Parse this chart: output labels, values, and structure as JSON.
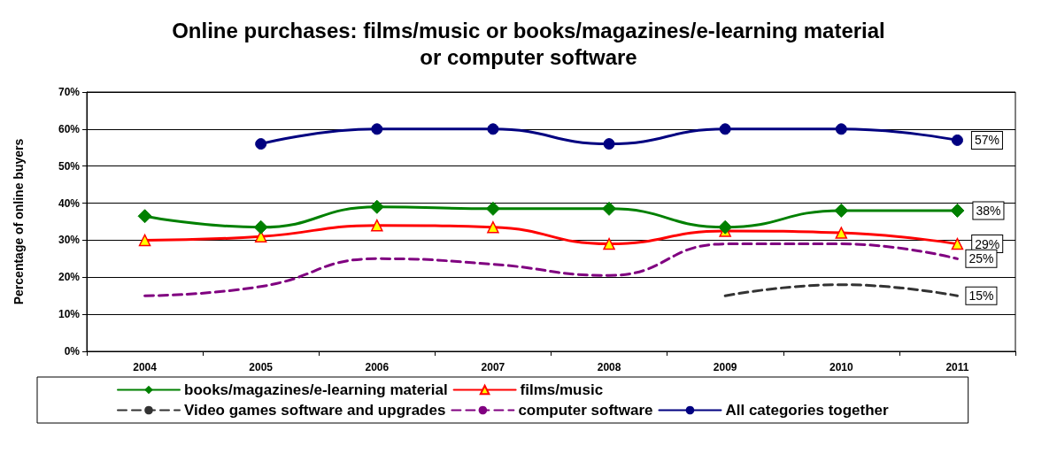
{
  "chart_data": {
    "type": "line",
    "title": "Online purchases: films/music or books/magazines/e-learning material\nor computer software",
    "ylabel": "Percentage of online buyers",
    "categories": [
      "2004",
      "2005",
      "2006",
      "2007",
      "2008",
      "2009",
      "2010",
      "2011"
    ],
    "series": [
      {
        "name": "books/magazines/e-learning material",
        "color": "#008000",
        "marker": "diamond",
        "values": [
          36.5,
          33.5,
          39,
          38.5,
          38.5,
          33.5,
          38,
          38
        ],
        "value_labels": [
          null,
          null,
          null,
          null,
          null,
          null,
          null,
          "38%"
        ]
      },
      {
        "name": "films/music",
        "color": "#ff0000",
        "marker": "triangle",
        "values": [
          30,
          31,
          34,
          33.5,
          29,
          32.5,
          32,
          29
        ],
        "value_labels": [
          null,
          null,
          null,
          null,
          null,
          null,
          null,
          "29%"
        ]
      },
      {
        "name": "Video games software and upgrades",
        "color": "#333333",
        "marker": "none",
        "line_style": "dashed",
        "values": [
          null,
          null,
          null,
          null,
          null,
          15,
          18,
          15
        ],
        "value_labels": [
          null,
          null,
          null,
          null,
          null,
          null,
          null,
          "15%"
        ]
      },
      {
        "name": "computer software",
        "color": "#800080",
        "marker": "none",
        "line_style": "dashed",
        "values": [
          15,
          17.5,
          25,
          23.5,
          20.5,
          29,
          29,
          25
        ],
        "value_labels": [
          null,
          null,
          null,
          null,
          null,
          null,
          null,
          "25%"
        ]
      },
      {
        "name": "All categories together",
        "color": "#000080",
        "marker": "circle",
        "values": [
          null,
          56,
          60,
          60,
          56,
          60,
          60,
          57
        ],
        "value_labels": [
          null,
          null,
          null,
          null,
          null,
          null,
          null,
          "57%"
        ]
      }
    ],
    "ylim": [
      0,
      70
    ],
    "yticks": [
      {
        "value": 0,
        "label": "0%"
      },
      {
        "value": 10,
        "label": "10%"
      },
      {
        "value": 20,
        "label": "20%"
      },
      {
        "value": 30,
        "label": "30%"
      },
      {
        "value": 40,
        "label": "40%"
      },
      {
        "value": 50,
        "label": "50%"
      },
      {
        "value": 60,
        "label": "60%"
      },
      {
        "value": 70,
        "label": "70%"
      }
    ],
    "grid": "y",
    "legend": "bottom"
  }
}
